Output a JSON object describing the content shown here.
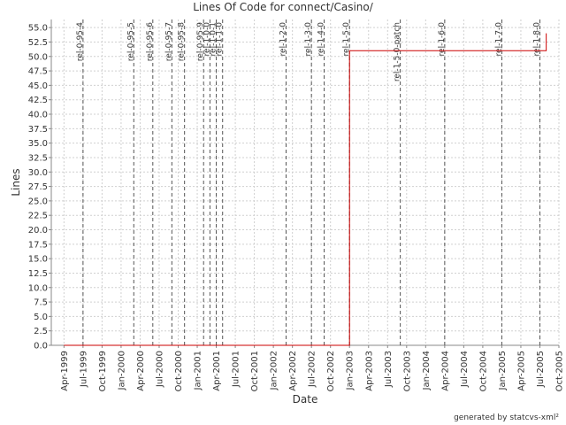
{
  "chart_data": {
    "type": "step",
    "title": "Lines Of Code for connect/Casino/",
    "x_label": "Date",
    "y_label": "Lines",
    "footer": "generated by statcvs-xml²",
    "x": [
      "1999-04",
      "2003-01",
      "2005-08"
    ],
    "series": [
      {
        "color": "#cc0000",
        "values": [
          0,
          51,
          54
        ]
      }
    ],
    "xlim": [
      "1999-02",
      "2005-10"
    ],
    "xticks": [
      {
        "value": "1999-04",
        "label": "Apr-1999"
      },
      {
        "value": "1999-07",
        "label": "Jul-1999"
      },
      {
        "value": "1999-10",
        "label": "Oct-1999"
      },
      {
        "value": "2000-01",
        "label": "Jan-2000"
      },
      {
        "value": "2000-04",
        "label": "Apr-2000"
      },
      {
        "value": "2000-07",
        "label": "Jul-2000"
      },
      {
        "value": "2000-10",
        "label": "Oct-2000"
      },
      {
        "value": "2001-01",
        "label": "Jan-2001"
      },
      {
        "value": "2001-04",
        "label": "Apr-2001"
      },
      {
        "value": "2001-07",
        "label": "Jul-2001"
      },
      {
        "value": "2001-10",
        "label": "Oct-2001"
      },
      {
        "value": "2002-01",
        "label": "Jan-2002"
      },
      {
        "value": "2002-04",
        "label": "Apr-2002"
      },
      {
        "value": "2002-07",
        "label": "Jul-2002"
      },
      {
        "value": "2002-10",
        "label": "Oct-2002"
      },
      {
        "value": "2003-01",
        "label": "Jan-2003"
      },
      {
        "value": "2003-04",
        "label": "Apr-2003"
      },
      {
        "value": "2003-07",
        "label": "Jul-2003"
      },
      {
        "value": "2003-10",
        "label": "Oct-2003"
      },
      {
        "value": "2004-01",
        "label": "Jan-2004"
      },
      {
        "value": "2004-04",
        "label": "Apr-2004"
      },
      {
        "value": "2004-07",
        "label": "Jul-2004"
      },
      {
        "value": "2004-10",
        "label": "Oct-2004"
      },
      {
        "value": "2005-01",
        "label": "Jan-2005"
      },
      {
        "value": "2005-04",
        "label": "Apr-2005"
      },
      {
        "value": "2005-07",
        "label": "Jul-2005"
      },
      {
        "value": "2005-10",
        "label": "Oct-2005"
      }
    ],
    "ylim": [
      0,
      56.4
    ],
    "yticks": [
      {
        "value": 0,
        "label": "0.0"
      },
      {
        "value": 2.5,
        "label": "2.5"
      },
      {
        "value": 5,
        "label": "5.0"
      },
      {
        "value": 7.5,
        "label": "7.5"
      },
      {
        "value": 10,
        "label": "10.0"
      },
      {
        "value": 12.5,
        "label": "12.5"
      },
      {
        "value": 15,
        "label": "15.0"
      },
      {
        "value": 17.5,
        "label": "17.5"
      },
      {
        "value": 20,
        "label": "20.0"
      },
      {
        "value": 22.5,
        "label": "22.5"
      },
      {
        "value": 25,
        "label": "25.0"
      },
      {
        "value": 27.5,
        "label": "27.5"
      },
      {
        "value": 30,
        "label": "30.0"
      },
      {
        "value": 32.5,
        "label": "32.5"
      },
      {
        "value": 35,
        "label": "35.0"
      },
      {
        "value": 37.5,
        "label": "37.5"
      },
      {
        "value": 40,
        "label": "40.0"
      },
      {
        "value": 42.5,
        "label": "42.5"
      },
      {
        "value": 45,
        "label": "45.0"
      },
      {
        "value": 47.5,
        "label": "47.5"
      },
      {
        "value": 50,
        "label": "50.0"
      },
      {
        "value": 52.5,
        "label": "52.5"
      },
      {
        "value": 55,
        "label": "55.0"
      }
    ],
    "grid": true,
    "markers": [
      {
        "label": "rel-0-95-4",
        "x": "1999-07"
      },
      {
        "label": "rel-0-95-5",
        "x": "2000-03"
      },
      {
        "label": "rel-0-95-6",
        "x": "2000-06"
      },
      {
        "label": "rel-0-95-7",
        "x": "2000-09"
      },
      {
        "label": "rel-0-95-8",
        "x": "2000-11"
      },
      {
        "label": "rel-0-95-9",
        "x": "2001-02"
      },
      {
        "label": "rel-1-0-0",
        "x": "2001-03"
      },
      {
        "label": "rel-1-0-1",
        "x": "2001-04"
      },
      {
        "label": "rel-1-1-0",
        "x": "2001-05"
      },
      {
        "label": "rel-1-2-0",
        "x": "2002-03"
      },
      {
        "label": "rel-1-3-0",
        "x": "2002-07"
      },
      {
        "label": "rel-1-4-0",
        "x": "2002-09"
      },
      {
        "label": "rel-1-5-0",
        "x": "2003-01"
      },
      {
        "label": "rel-1-5-0-patch",
        "x": "2003-09"
      },
      {
        "label": "rel-1-6-0",
        "x": "2004-04"
      },
      {
        "label": "rel-1-7-0",
        "x": "2005-01"
      },
      {
        "label": "rel-1-8-0",
        "x": "2005-07"
      }
    ]
  }
}
